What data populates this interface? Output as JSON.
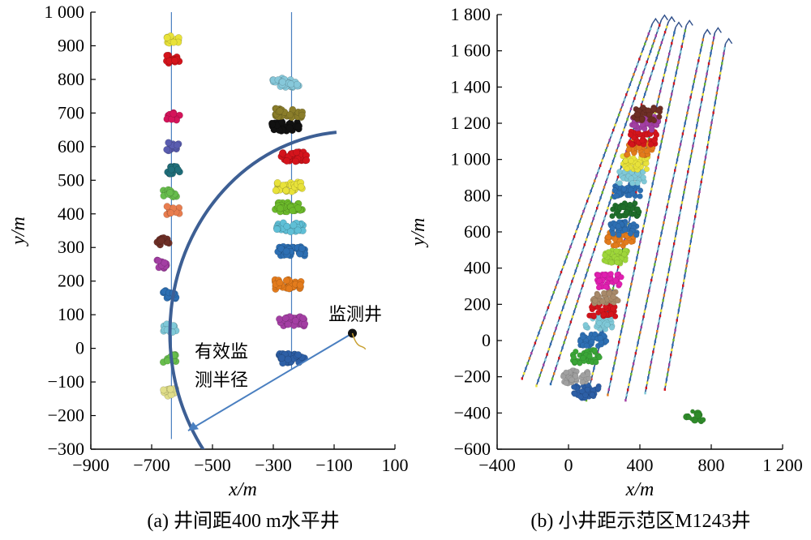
{
  "chart_data": [
    {
      "type": "scatter",
      "caption": "(a) 井间距400 m水平井",
      "xlabel": "x/m",
      "ylabel": "y/m",
      "xlim": [
        -900,
        100
      ],
      "ylim": [
        -300,
        1000
      ],
      "x_ticks": [
        -900,
        -700,
        -500,
        -300,
        -100,
        100
      ],
      "x_tick_labels": [
        "−900",
        "−700",
        "−500",
        "−300",
        "−100",
        "100"
      ],
      "y_ticks": [
        -300,
        -200,
        -100,
        0,
        100,
        200,
        300,
        400,
        500,
        600,
        700,
        800,
        900,
        1000
      ],
      "y_tick_labels": [
        "−300",
        "−200",
        "−100",
        "0",
        "100",
        "200",
        "300",
        "400",
        "500",
        "600",
        "700",
        "800",
        "900",
        "1 000"
      ],
      "annotations": {
        "monitor_well": "监测井",
        "radius_line1": "有效监",
        "radius_line2": "测半径"
      },
      "wells": [
        {
          "x": -635,
          "y_range": [
            -270,
            1000
          ]
        },
        {
          "x": -240,
          "y_range": [
            -60,
            1000
          ]
        }
      ],
      "monitor_well": {
        "x": -40,
        "y": 45
      },
      "radius_arc": {
        "center_x": -40,
        "center_y": 45,
        "radius": 600
      },
      "radius_line": {
        "from": [
          -40,
          45
        ],
        "to": [
          -580,
          -245
        ]
      },
      "clusters": [
        {
          "x": -240,
          "y": -30,
          "color": "#2d5fa6"
        },
        {
          "x": -240,
          "y": 80,
          "color": "#a33ea3"
        },
        {
          "x": -250,
          "y": 190,
          "color": "#e37b1c"
        },
        {
          "x": -240,
          "y": 290,
          "color": "#2d6fb3"
        },
        {
          "x": -245,
          "y": 360,
          "color": "#5fbfd6"
        },
        {
          "x": -250,
          "y": 420,
          "color": "#6cba2b"
        },
        {
          "x": -250,
          "y": 480,
          "color": "#e8e23a"
        },
        {
          "x": -230,
          "y": 570,
          "color": "#d4141c"
        },
        {
          "x": -260,
          "y": 660,
          "color": "#111111"
        },
        {
          "x": -250,
          "y": 700,
          "color": "#8a7d2a"
        },
        {
          "x": -260,
          "y": 790,
          "color": "#86c8da"
        },
        {
          "x": -640,
          "y": -130,
          "color": "#e0de8a"
        },
        {
          "x": -640,
          "y": -30,
          "color": "#67bd4c"
        },
        {
          "x": -640,
          "y": 60,
          "color": "#7fc9d8"
        },
        {
          "x": -640,
          "y": 160,
          "color": "#2d6fb3"
        },
        {
          "x": -660,
          "y": 250,
          "color": "#a33ea3"
        },
        {
          "x": -660,
          "y": 320,
          "color": "#6e2f26"
        },
        {
          "x": -630,
          "y": 410,
          "color": "#e87d4f"
        },
        {
          "x": -640,
          "y": 460,
          "color": "#67bd4c"
        },
        {
          "x": -630,
          "y": 530,
          "color": "#1f6e7a"
        },
        {
          "x": -630,
          "y": 600,
          "color": "#5a5db0"
        },
        {
          "x": -630,
          "y": 690,
          "color": "#d4145a"
        },
        {
          "x": -630,
          "y": 860,
          "color": "#d4141c"
        },
        {
          "x": -630,
          "y": 920,
          "color": "#e8e23a"
        }
      ]
    },
    {
      "type": "scatter",
      "caption": "(b) 小井距示范区M1243井",
      "xlabel": "x/m",
      "ylabel": "y/m",
      "xlim": [
        -400,
        1200
      ],
      "ylim": [
        -600,
        1800
      ],
      "x_ticks": [
        -400,
        0,
        400,
        800,
        1200
      ],
      "x_tick_labels": [
        "−400",
        "0",
        "400",
        "800",
        "1 200"
      ],
      "y_ticks": [
        -600,
        -400,
        -200,
        0,
        200,
        400,
        600,
        800,
        1000,
        1200,
        1400,
        1600,
        1800
      ],
      "y_tick_labels": [
        "−600",
        "−400",
        "−200",
        "0",
        "200",
        "400",
        "600",
        "800",
        "1 000",
        "1 200",
        "1 400",
        "1 600",
        "1 800"
      ],
      "wells": [
        {
          "x_start": -260,
          "y_start": -210,
          "x_end": 470,
          "y_end": 1750
        },
        {
          "x_start": -180,
          "y_start": -250,
          "x_end": 520,
          "y_end": 1770
        },
        {
          "x_start": -100,
          "y_start": -240,
          "x_end": 560,
          "y_end": 1760
        },
        {
          "x_start": 100,
          "y_start": -330,
          "x_end": 600,
          "y_end": 1730
        },
        {
          "x_start": 220,
          "y_start": -300,
          "x_end": 660,
          "y_end": 1740
        },
        {
          "x_start": 320,
          "y_start": -330,
          "x_end": 760,
          "y_end": 1690
        },
        {
          "x_start": 430,
          "y_start": -290,
          "x_end": 820,
          "y_end": 1700
        },
        {
          "x_start": 540,
          "y_start": -270,
          "x_end": 880,
          "y_end": 1640
        }
      ],
      "clusters": [
        {
          "x": 100,
          "y": -280,
          "color": "#2d5fa6"
        },
        {
          "x": 40,
          "y": -200,
          "color": "#a0a0a0"
        },
        {
          "x": 100,
          "y": -90,
          "color": "#3aa537"
        },
        {
          "x": 140,
          "y": 0,
          "color": "#2d6fb3"
        },
        {
          "x": 170,
          "y": 100,
          "color": "#7fc9d8"
        },
        {
          "x": 190,
          "y": 170,
          "color": "#d4141c"
        },
        {
          "x": 210,
          "y": 240,
          "color": "#a88a6a"
        },
        {
          "x": 230,
          "y": 330,
          "color": "#e01fb0"
        },
        {
          "x": 260,
          "y": 460,
          "color": "#9ed63a"
        },
        {
          "x": 290,
          "y": 560,
          "color": "#e37b1c"
        },
        {
          "x": 310,
          "y": 620,
          "color": "#2d6fb3"
        },
        {
          "x": 320,
          "y": 720,
          "color": "#1f6e2a"
        },
        {
          "x": 330,
          "y": 830,
          "color": "#2d6fb3"
        },
        {
          "x": 350,
          "y": 900,
          "color": "#7fc9d8"
        },
        {
          "x": 370,
          "y": 980,
          "color": "#e8e23a"
        },
        {
          "x": 400,
          "y": 1060,
          "color": "#e37b1c"
        },
        {
          "x": 420,
          "y": 1120,
          "color": "#d4141c"
        },
        {
          "x": 430,
          "y": 1200,
          "color": "#a33ea3"
        },
        {
          "x": 440,
          "y": 1250,
          "color": "#6e2f26"
        },
        {
          "x": 700,
          "y": -420,
          "color": "#2f8a2a"
        }
      ]
    }
  ]
}
